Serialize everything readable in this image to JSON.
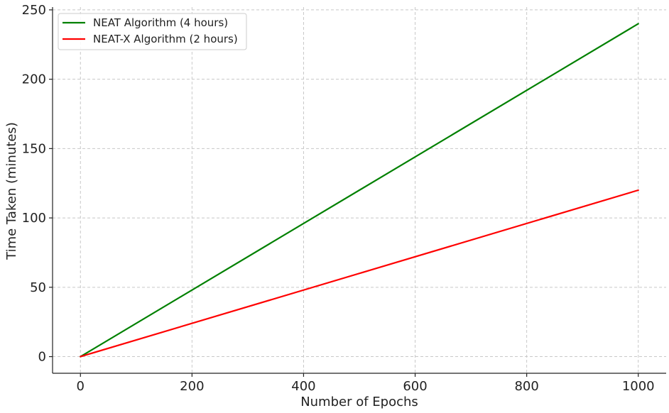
{
  "chart_data": {
    "type": "line",
    "title": "",
    "xlabel": "Number of Epochs",
    "ylabel": "Time Taken (minutes)",
    "xlim": [
      -50,
      1050
    ],
    "ylim": [
      -12,
      252
    ],
    "x_ticks": [
      0,
      200,
      400,
      600,
      800,
      1000
    ],
    "y_ticks": [
      0,
      50,
      100,
      150,
      200,
      250
    ],
    "x_tick_labels": [
      "0",
      "200",
      "400",
      "600",
      "800",
      "1000"
    ],
    "y_tick_labels": [
      "0",
      "50",
      "100",
      "150",
      "200",
      "250"
    ],
    "grid": true,
    "legend_position": "top-left",
    "series": [
      {
        "name": "NEAT Algorithm (4 hours)",
        "color": "#008000",
        "x": [
          0,
          1000
        ],
        "y": [
          0,
          240
        ]
      },
      {
        "name": "NEAT-X Algorithm (2 hours)",
        "color": "#ff0000",
        "x": [
          0,
          1000
        ],
        "y": [
          0,
          120
        ]
      }
    ]
  }
}
